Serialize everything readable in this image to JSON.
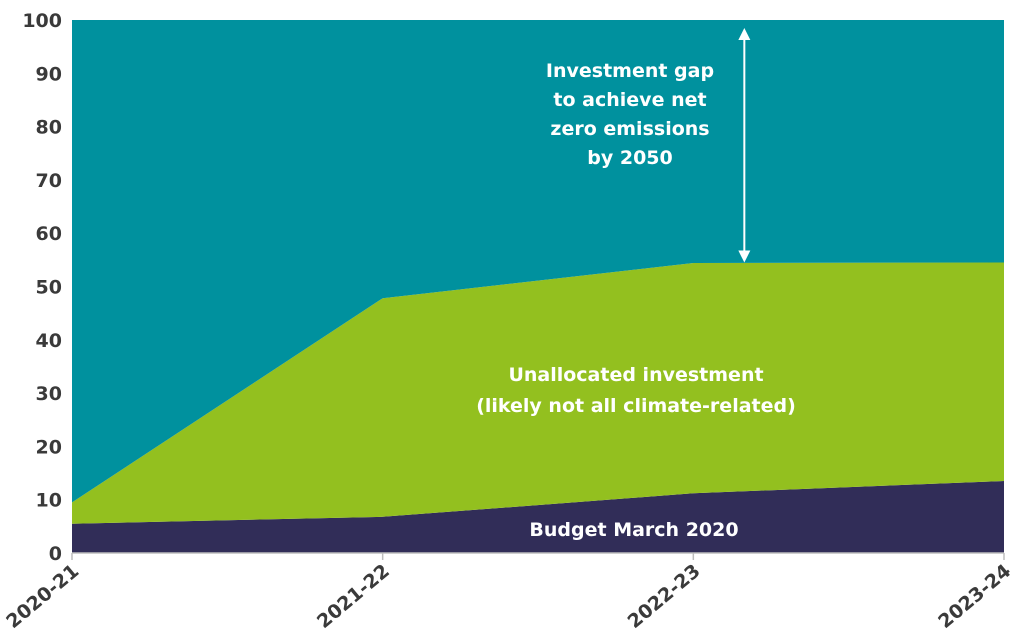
{
  "chart_data": {
    "type": "area",
    "stacked": true,
    "categories": [
      "2020-21",
      "2021-22",
      "2022-23",
      "2023-24"
    ],
    "ylim": [
      0,
      100
    ],
    "yticks": [
      0,
      10,
      20,
      30,
      40,
      50,
      60,
      70,
      80,
      90,
      100
    ],
    "grid": false,
    "series": [
      {
        "name": "Budget March 2020",
        "values": [
          5.5,
          6.8,
          11.2,
          13.5
        ],
        "color": "#312d58"
      },
      {
        "name": "Unallocated investment (likely not all climate-related)",
        "values": [
          4.0,
          41.0,
          43.2,
          41.0
        ],
        "color": "#93c01f"
      },
      {
        "name": "Investment gap to achieve net zero emissions by 2050",
        "values": [
          90.5,
          52.2,
          45.6,
          45.5
        ],
        "color": "#00919e"
      }
    ],
    "annotations": [
      {
        "lines": [
          "Investment gap",
          "to achieve net",
          "zero emissions",
          "by 2050"
        ],
        "arrow": {
          "x": "2022-23",
          "from": 54.5,
          "to": 98.5
        }
      },
      {
        "lines": [
          "Unallocated investment",
          "(likely not all climate-related)"
        ]
      },
      {
        "lines": [
          "Budget March 2020"
        ]
      }
    ]
  }
}
